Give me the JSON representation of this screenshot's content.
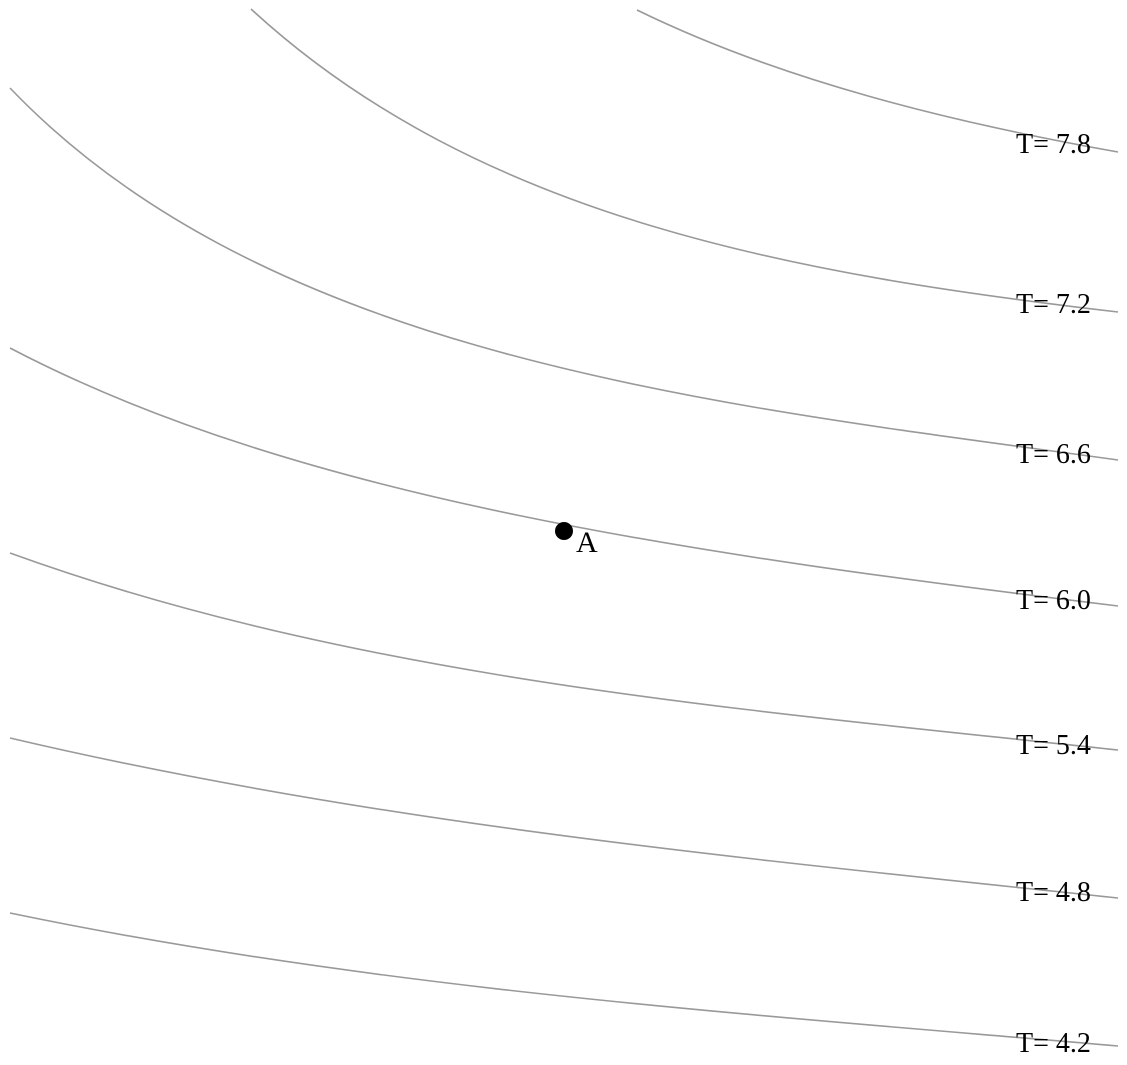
{
  "isolines": [
    {
      "label": "T= 7.8",
      "value": 7.8
    },
    {
      "label": "T= 7.2",
      "value": 7.2
    },
    {
      "label": "T= 6.6",
      "value": 6.6
    },
    {
      "label": "T= 6.0",
      "value": 6.0
    },
    {
      "label": "T= 5.4",
      "value": 5.4
    },
    {
      "label": "T= 4.8",
      "value": 4.8
    },
    {
      "label": "T= 4.2",
      "value": 4.2
    }
  ],
  "point": {
    "label": "A",
    "on_isoline": "T= 6.0"
  },
  "colors": {
    "isoline": "#999999",
    "text": "#000000",
    "point": "#000000"
  }
}
